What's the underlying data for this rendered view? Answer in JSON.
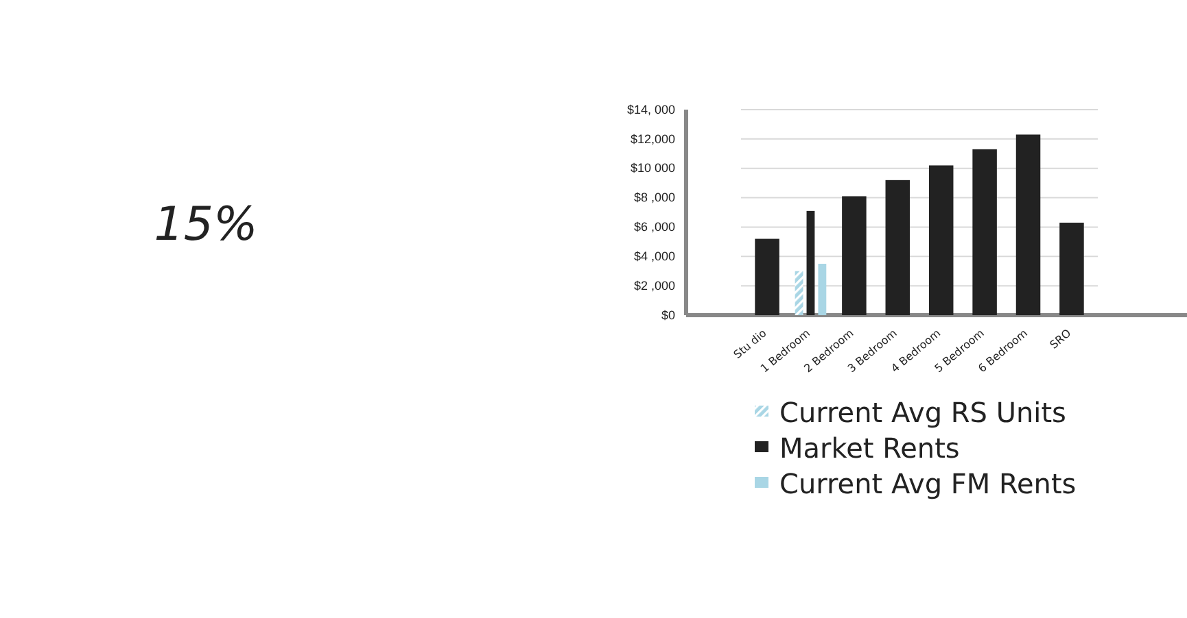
{
  "chart_data": {
    "type": "bar",
    "categories": [
      "Stu dio",
      "1 Bedroom",
      "2 Bedroom",
      "3 Bedroom",
      "4 Bedroom",
      "5 Bedroom",
      "6 Bedroom",
      "SRO"
    ],
    "series": [
      {
        "name": "Current Avg RS Units",
        "color": "#a9d6e5",
        "values": [
          null,
          3000,
          null,
          null,
          null,
          null,
          null,
          null
        ]
      },
      {
        "name": "Market Rents",
        "color": "#222222",
        "values": [
          5200,
          7100,
          8100,
          9200,
          10200,
          11300,
          12300,
          6300
        ]
      },
      {
        "name": "Current Avg FM Rents",
        "color": "#a9d6e5",
        "values": [
          null,
          3500,
          null,
          null,
          null,
          null,
          null,
          null
        ]
      }
    ],
    "ylim": [
      0,
      14000
    ],
    "yticks": [
      {
        "value": 0,
        "label": "$0"
      },
      {
        "value": 2000,
        "label": "$2 ,000"
      },
      {
        "value": 4000,
        "label": "$4 ,000"
      },
      {
        "value": 6000,
        "label": "$6 ,000"
      },
      {
        "value": 8000,
        "label": "$8 ,000"
      },
      {
        "value": 10000,
        "label": "$10 000"
      },
      {
        "value": 12000,
        "label": "$12,000"
      },
      {
        "value": 14000,
        "label": "$14, 000"
      }
    ],
    "grid": "y",
    "legend": "bottom",
    "annotations": [
      "15%"
    ]
  }
}
